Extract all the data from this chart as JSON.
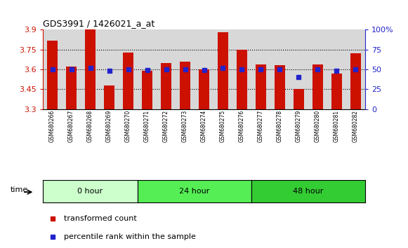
{
  "title": "GDS3991 / 1426021_a_at",
  "samples": [
    "GSM680266",
    "GSM680267",
    "GSM680268",
    "GSM680269",
    "GSM680270",
    "GSM680271",
    "GSM680272",
    "GSM680273",
    "GSM680274",
    "GSM680275",
    "GSM680276",
    "GSM680277",
    "GSM680278",
    "GSM680279",
    "GSM680280",
    "GSM680281",
    "GSM680282"
  ],
  "transformed_count": [
    3.82,
    3.62,
    3.9,
    3.48,
    3.73,
    3.59,
    3.65,
    3.66,
    3.6,
    3.88,
    3.75,
    3.64,
    3.63,
    3.45,
    3.64,
    3.57,
    3.72
  ],
  "percentile_rank": [
    50,
    50,
    52,
    48,
    50,
    49,
    50,
    50,
    49,
    52,
    50,
    50,
    50,
    40,
    50,
    48,
    50
  ],
  "groups": [
    {
      "label": "0 hour",
      "start": 0,
      "end": 5,
      "color": "#ccffcc"
    },
    {
      "label": "24 hour",
      "start": 5,
      "end": 11,
      "color": "#55ee55"
    },
    {
      "label": "48 hour",
      "start": 11,
      "end": 17,
      "color": "#33cc33"
    }
  ],
  "ylim_left": [
    3.3,
    3.9
  ],
  "ylim_right": [
    0,
    100
  ],
  "bar_color": "#cc1100",
  "dot_color": "#2222cc",
  "left_tick_color": "#cc1100",
  "right_tick_color": "#2222cc",
  "left_yticks": [
    3.3,
    3.45,
    3.6,
    3.75,
    3.9
  ],
  "right_yticks": [
    0,
    25,
    50,
    75,
    100
  ],
  "right_yticklabels": [
    "0",
    "25",
    "50",
    "75",
    "100%"
  ],
  "col_bg": "#d8d8d8",
  "figsize": [
    5.81,
    3.54
  ],
  "dpi": 100
}
